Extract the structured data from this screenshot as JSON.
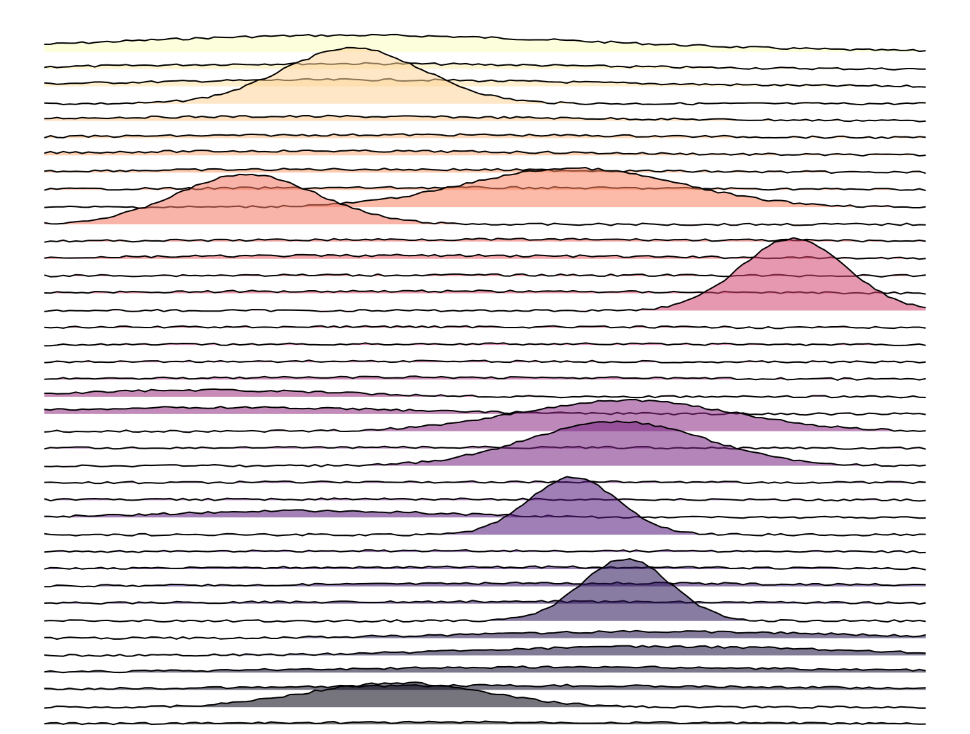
{
  "chart_data": {
    "type": "area",
    "title": "",
    "xlabel": "",
    "ylabel": "",
    "grid": false,
    "legend": "none",
    "xlim": [
      0,
      1
    ],
    "row_count": 40,
    "fill_opacity": 0.55,
    "colormap": [
      "#fcfdbf",
      "#fec287",
      "#fb8761",
      "#e55064",
      "#b5367a",
      "#8c2981",
      "#641a80",
      "#3b0f70",
      "#1c1044",
      "#000004"
    ],
    "series": [
      {
        "peak": 0.35,
        "width": 0.28,
        "height": 1.5
      },
      {
        "peak": 0.34,
        "width": 0.26,
        "height": 0.5
      },
      {
        "peak": 0.35,
        "width": 0.26,
        "height": 0.6
      },
      {
        "peak": 0.35,
        "width": 0.08,
        "height": 5.0
      },
      {
        "peak": 0.3,
        "width": 0.3,
        "height": 0.4
      },
      {
        "peak": 0.4,
        "width": 0.3,
        "height": 0.3
      },
      {
        "peak": 0.3,
        "width": 0.3,
        "height": 0.4
      },
      {
        "peak": 0.35,
        "width": 0.28,
        "height": 0.3
      },
      {
        "peak": 0.45,
        "width": 0.3,
        "height": 0.2
      },
      {
        "peak": 0.6,
        "width": 0.12,
        "height": 3.5
      },
      {
        "peak": 0.23,
        "width": 0.08,
        "height": 4.5
      },
      {
        "peak": 0.5,
        "width": 0.3,
        "height": 0.2
      },
      {
        "peak": 0.4,
        "width": 0.3,
        "height": 0.3
      },
      {
        "peak": 0.45,
        "width": 0.3,
        "height": 0.1
      },
      {
        "peak": 0.4,
        "width": 0.3,
        "height": 0.2
      },
      {
        "peak": 0.85,
        "width": 0.06,
        "height": 6.5
      },
      {
        "peak": 0.4,
        "width": 0.3,
        "height": 0.1
      },
      {
        "peak": 0.5,
        "width": 0.3,
        "height": 0.1
      },
      {
        "peak": 0.4,
        "width": 0.3,
        "height": 0.1
      },
      {
        "peak": 0.4,
        "width": 0.3,
        "height": 0.2
      },
      {
        "peak": 0.18,
        "width": 0.15,
        "height": 0.6
      },
      {
        "peak": 0.2,
        "width": 0.2,
        "height": 0.6
      },
      {
        "peak": 0.66,
        "width": 0.12,
        "height": 2.8
      },
      {
        "peak": 0.45,
        "width": 0.3,
        "height": 0.1
      },
      {
        "peak": 0.65,
        "width": 0.1,
        "height": 4.0
      },
      {
        "peak": 0.5,
        "width": 0.3,
        "height": 0.1
      },
      {
        "peak": 0.4,
        "width": 0.3,
        "height": 0.1
      },
      {
        "peak": 0.3,
        "width": 0.15,
        "height": 0.6
      },
      {
        "peak": 0.6,
        "width": 0.05,
        "height": 5.2
      },
      {
        "peak": 0.5,
        "width": 0.3,
        "height": 0.1
      },
      {
        "peak": 0.5,
        "width": 0.3,
        "height": 0.2
      },
      {
        "peak": 0.6,
        "width": 0.3,
        "height": 0.3
      },
      {
        "peak": 0.5,
        "width": 0.3,
        "height": 0.2
      },
      {
        "peak": 0.66,
        "width": 0.05,
        "height": 5.6
      },
      {
        "peak": 0.7,
        "width": 0.2,
        "height": 0.6
      },
      {
        "peak": 0.7,
        "width": 0.2,
        "height": 0.8
      },
      {
        "peak": 0.6,
        "width": 0.3,
        "height": 0.5
      },
      {
        "peak": 0.55,
        "width": 0.3,
        "height": 0.4
      },
      {
        "peak": 0.4,
        "width": 0.1,
        "height": 2.2
      },
      {
        "peak": 0.5,
        "width": 0.3,
        "height": 0.2
      }
    ]
  }
}
